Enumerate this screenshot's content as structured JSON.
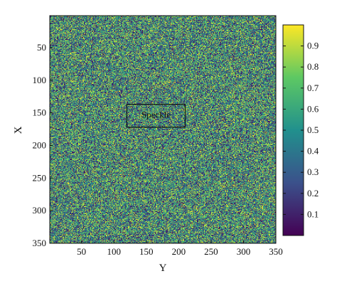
{
  "chart_data": {
    "type": "heatmap",
    "title": "",
    "xlabel": "Y",
    "ylabel": "X",
    "x_range": [
      1,
      350
    ],
    "y_range": [
      1,
      350
    ],
    "x_ticks": [
      50,
      100,
      150,
      200,
      250,
      300,
      350
    ],
    "y_ticks": [
      50,
      100,
      150,
      200,
      250,
      300,
      350
    ],
    "y_axis_direction": "top-to-bottom",
    "matrix_size": [
      350,
      350
    ],
    "value_range": [
      0,
      1
    ],
    "value_distribution": "uniform random speckle pattern",
    "colormap": "viridis-like",
    "colormap_stops": [
      "#440154",
      "#3b518b",
      "#21908d",
      "#5dc863",
      "#fde725"
    ],
    "colorbar": {
      "ticks": [
        0.1,
        0.2,
        0.3,
        0.4,
        0.5,
        0.6,
        0.7,
        0.8,
        0.9
      ],
      "range": [
        0,
        1
      ],
      "placement": "right"
    },
    "annotation": {
      "text": "Speckle",
      "x_range": [
        120,
        210
      ],
      "y_range": [
        137,
        172
      ],
      "style": "outlined box"
    },
    "grid": false
  }
}
